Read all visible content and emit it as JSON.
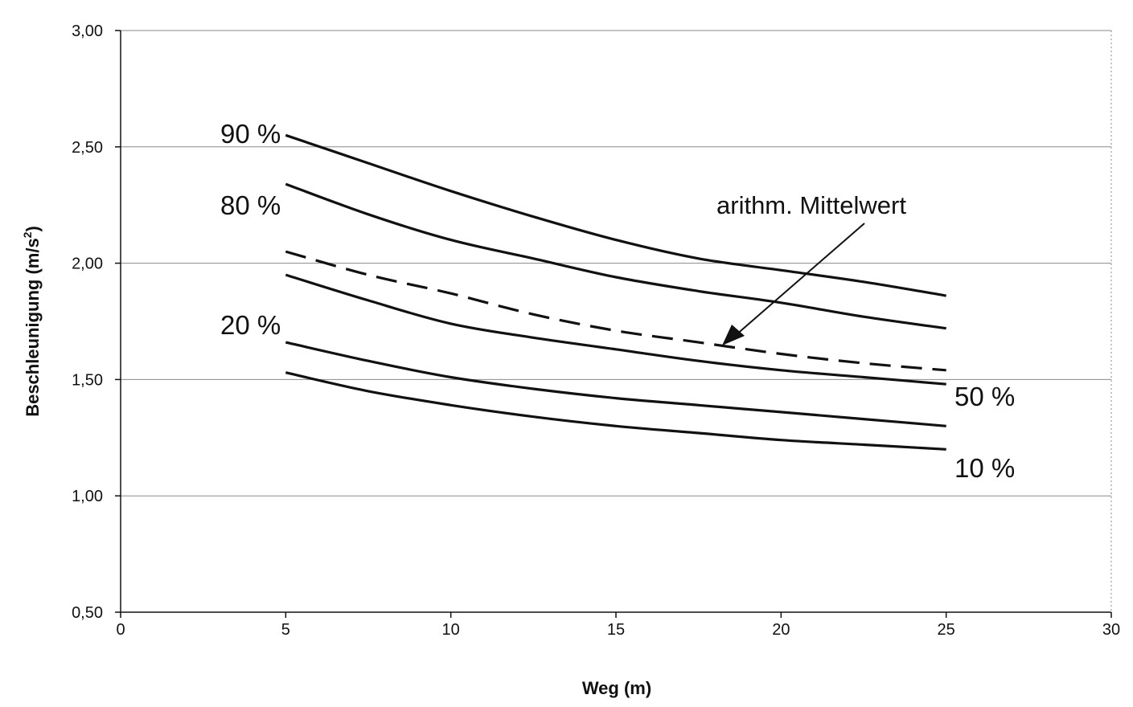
{
  "chart_data": {
    "type": "line",
    "xlabel": "Weg (m)",
    "ylabel_main": "Beschleunigung (m/s",
    "ylabel_sup": "2",
    "ylabel_close": ")",
    "xlim": [
      0,
      30
    ],
    "ylim": [
      0.5,
      3.0
    ],
    "x_ticks": [
      0,
      5,
      10,
      15,
      20,
      25,
      30
    ],
    "x_tick_labels": [
      "0",
      "5",
      "10",
      "15",
      "20",
      "25",
      "30"
    ],
    "y_ticks": [
      0.5,
      1.0,
      1.5,
      2.0,
      2.5,
      3.0
    ],
    "y_tick_labels": [
      "0,50",
      "1,00",
      "1,50",
      "2,00",
      "2,50",
      "3,00"
    ],
    "grid": "horizontal",
    "legend": "none",
    "x": [
      5,
      7.5,
      10,
      12.5,
      15,
      17.5,
      20,
      22.5,
      25
    ],
    "series": [
      {
        "name": "90 %",
        "dashed": false,
        "values": [
          2.55,
          2.43,
          2.31,
          2.2,
          2.1,
          2.02,
          1.97,
          1.92,
          1.86
        ]
      },
      {
        "name": "80 %",
        "dashed": false,
        "values": [
          2.34,
          2.21,
          2.1,
          2.02,
          1.94,
          1.88,
          1.83,
          1.77,
          1.72
        ]
      },
      {
        "name": "arithm. Mittelwert",
        "dashed": true,
        "values": [
          2.05,
          1.95,
          1.87,
          1.78,
          1.71,
          1.66,
          1.61,
          1.57,
          1.54
        ]
      },
      {
        "name": "50 %",
        "dashed": false,
        "values": [
          1.95,
          1.84,
          1.74,
          1.68,
          1.63,
          1.58,
          1.54,
          1.51,
          1.48
        ]
      },
      {
        "name": "20 %",
        "dashed": false,
        "values": [
          1.66,
          1.58,
          1.51,
          1.46,
          1.42,
          1.39,
          1.36,
          1.33,
          1.3
        ]
      },
      {
        "name": "10 %",
        "dashed": false,
        "values": [
          1.53,
          1.45,
          1.39,
          1.34,
          1.3,
          1.27,
          1.24,
          1.22,
          1.2
        ]
      }
    ],
    "series_labels": [
      "90 %",
      "80 %",
      "20 %",
      "50 %",
      "10 %"
    ],
    "annotation": {
      "text": "arithm. Mittelwert",
      "target_series": "arithm. Mittelwert"
    },
    "colors": {
      "line": "#111111",
      "grid": "#8a8a8a",
      "background": "#ffffff"
    }
  }
}
